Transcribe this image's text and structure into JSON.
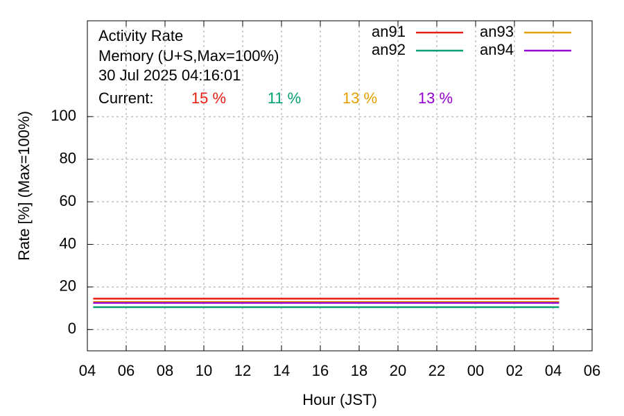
{
  "chart_data": {
    "type": "line",
    "title": "Activity Rate",
    "subtitle": "Memory (U+S,Max=100%)",
    "timestamp": "30 Jul 2025 04:16:01",
    "current_label": "Current:",
    "x_label": "Hour (JST)",
    "y_label": "Rate [%]  (Max=100%)",
    "x": [
      4.3,
      28.3
    ],
    "series": [
      {
        "name": "an91",
        "color": "#e51e10",
        "values": [
          14.5,
          14.5
        ],
        "current": "15 %"
      },
      {
        "name": "an92",
        "color": "#009e73",
        "values": [
          10.5,
          10.5
        ],
        "current": "11 %"
      },
      {
        "name": "an93",
        "color": "#e69f00",
        "values": [
          13,
          13
        ],
        "current": "13 %"
      },
      {
        "name": "an94",
        "color": "#9400d3",
        "values": [
          12.5,
          12.5
        ],
        "current": "13 %"
      }
    ],
    "xlim": [
      4,
      30
    ],
    "xticks": [
      {
        "value": 4,
        "label": "04"
      },
      {
        "value": 6,
        "label": "06"
      },
      {
        "value": 8,
        "label": "08"
      },
      10,
      12,
      14,
      16,
      18,
      20,
      22,
      {
        "value": 24,
        "label": "00"
      },
      {
        "value": 26,
        "label": "02"
      },
      {
        "value": 28,
        "label": "04"
      },
      {
        "value": 30,
        "label": "06"
      }
    ],
    "ylim": [
      -10,
      145
    ],
    "yticks": [
      0,
      20,
      40,
      60,
      80,
      100
    ],
    "grid": true,
    "legend": "top-right"
  }
}
